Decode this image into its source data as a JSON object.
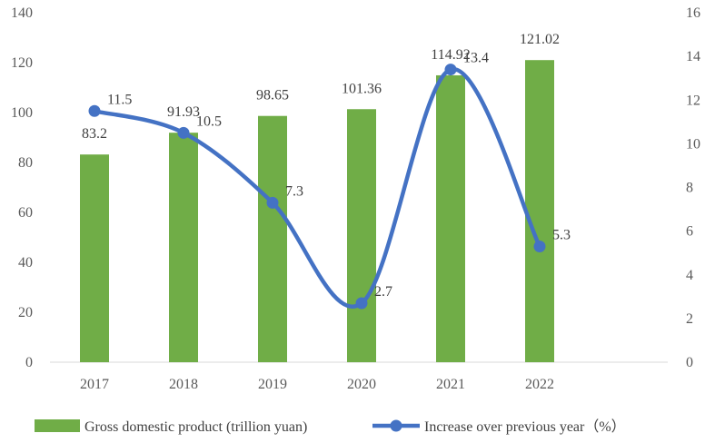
{
  "chart_data": {
    "type": "bar",
    "categories": [
      "2017",
      "2018",
      "2019",
      "2020",
      "2021",
      "2022"
    ],
    "series": [
      {
        "name": "Gross domestic product (trillion yuan)",
        "type": "bar",
        "axis": "left",
        "values": [
          83.2,
          91.93,
          98.65,
          101.36,
          114.92,
          121.02
        ],
        "labels": [
          "83.2",
          "91.93",
          "98.65",
          "101.36",
          "114.92",
          "121.02"
        ],
        "color": "#70AD47"
      },
      {
        "name": "Increase over previous year（%）",
        "type": "line",
        "smooth": true,
        "axis": "right",
        "values": [
          11.5,
          10.5,
          7.3,
          2.7,
          13.4,
          5.3
        ],
        "labels": [
          "11.5",
          "10.5",
          "7.3",
          "2.7",
          "13.4",
          "5.3"
        ],
        "color": "#4472C4"
      }
    ],
    "y_left": {
      "min": 0,
      "max": 140,
      "step": 20,
      "ticks": [
        "0",
        "20",
        "40",
        "60",
        "80",
        "100",
        "120",
        "140"
      ]
    },
    "y_right": {
      "min": 0,
      "max": 16,
      "step": 2,
      "ticks": [
        "0",
        "2",
        "4",
        "6",
        "8",
        "10",
        "12",
        "14",
        "16"
      ]
    },
    "grid": false,
    "legend_position": "bottom",
    "title": "",
    "xlabel": "",
    "ylabel": ""
  }
}
